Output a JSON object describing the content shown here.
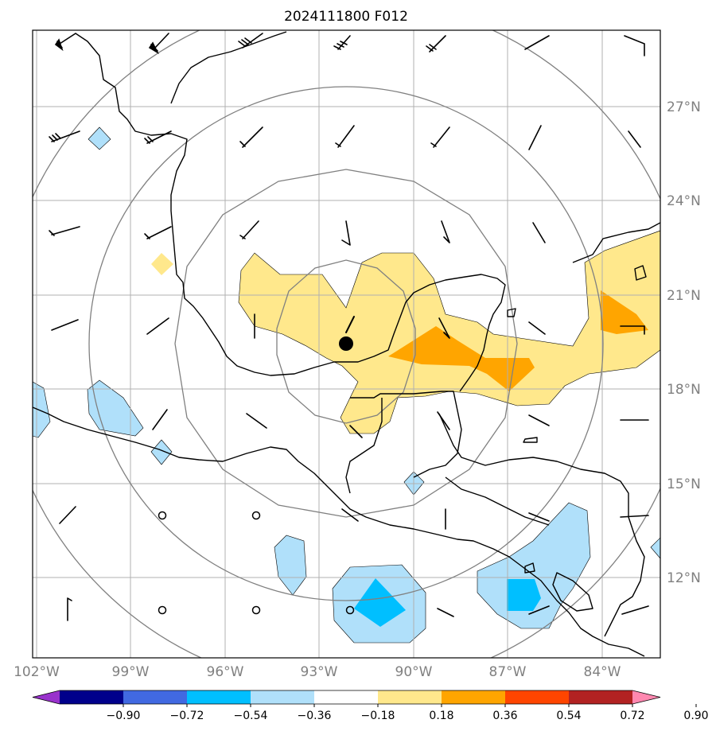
{
  "title": "2024111800 F012",
  "map": {
    "lon_labels": [
      "102°W",
      "99°W",
      "96°W",
      "93°W",
      "90°W",
      "87°W",
      "84°W"
    ],
    "lat_labels": [
      "27°N",
      "24°N",
      "21°N",
      "18°N",
      "15°N",
      "12°N"
    ],
    "storm_center": {
      "lon": -92.0,
      "lat": 19.4
    }
  },
  "colorbar": {
    "ticks": [
      "−0.90",
      "−0.72",
      "−0.54",
      "−0.36",
      "−0.18",
      "0.18",
      "0.36",
      "0.54",
      "0.72",
      "0.90"
    ],
    "colors": [
      "#9932cc",
      "#00008b",
      "#4169e1",
      "#00bfff",
      "#b0e0fa",
      "#ffffff",
      "#ffe88c",
      "#ffa500",
      "#ff4500",
      "#b22222",
      "#ff88b0"
    ]
  },
  "colors": {
    "grid": "#b0b0b0",
    "range_rings": "#808080",
    "coast": "#000000"
  }
}
